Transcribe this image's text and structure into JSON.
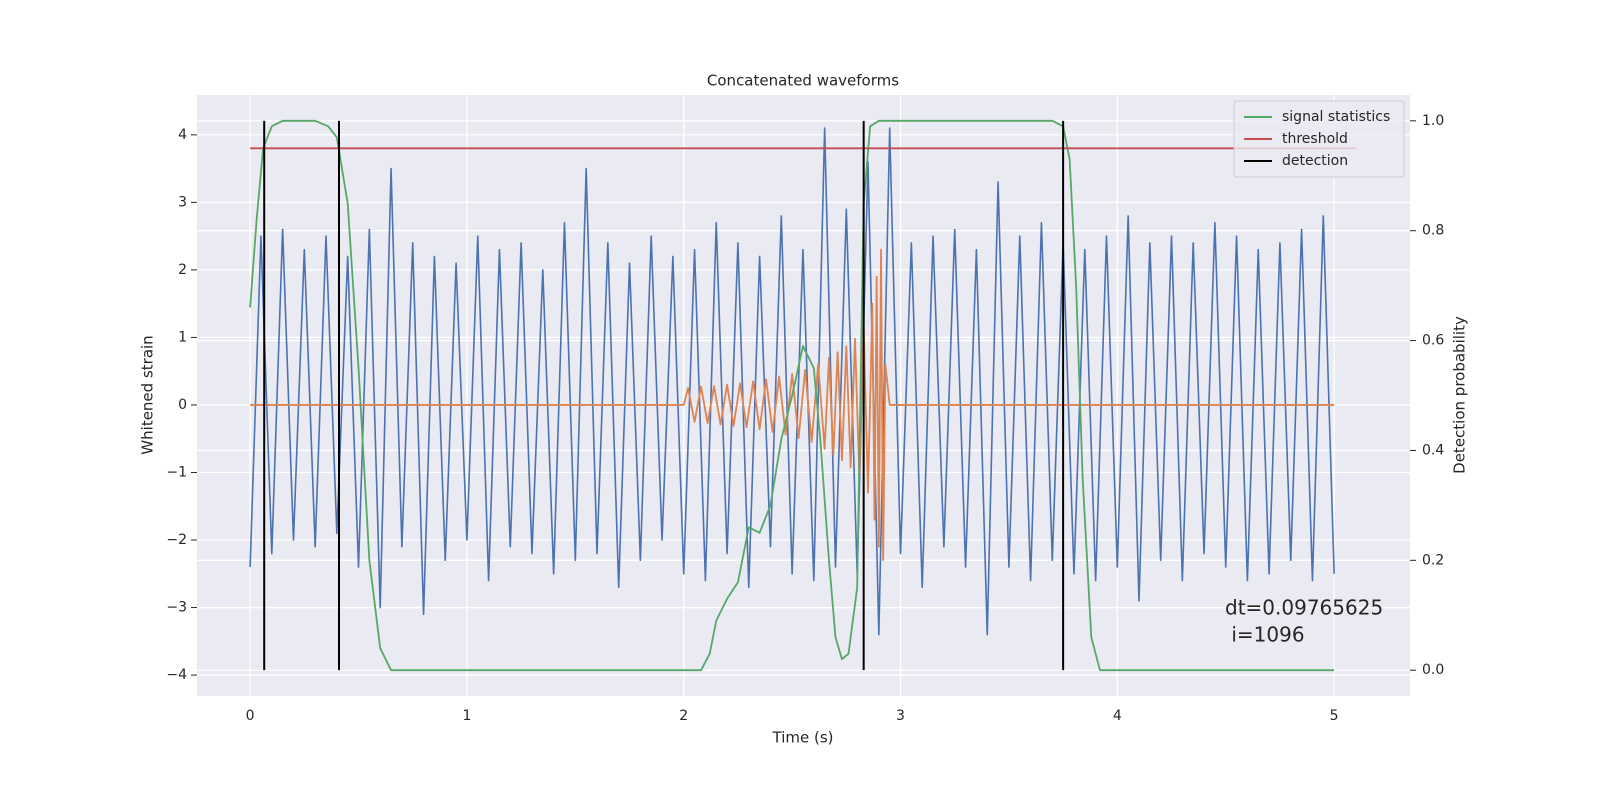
{
  "chart_data": {
    "type": "line",
    "title": "Concatenated waveforms",
    "xlabel": "Time (s)",
    "ylabel": "Whitened strain",
    "y2label": "Detection probability",
    "xlim": [
      -0.245,
      5.35
    ],
    "ylim": [
      -4.31,
      4.59
    ],
    "y2lim": [
      -0.047,
      1.047
    ],
    "xticks": [
      0,
      1,
      2,
      3,
      4,
      5
    ],
    "yticks": [
      {
        "value": -4,
        "label": "−4"
      },
      {
        "value": -3,
        "label": "−3"
      },
      {
        "value": -2,
        "label": "−2"
      },
      {
        "value": -1,
        "label": "−1"
      },
      0,
      1,
      2,
      3,
      4
    ],
    "y2ticks": [
      {
        "value": 0,
        "label": "0.0"
      },
      0.2,
      0.4,
      0.6,
      0.8,
      {
        "value": 1,
        "label": "1.0"
      }
    ],
    "grid": true,
    "legend": "upper right",
    "annotation": [
      "dt=0.09765625",
      " i=1096"
    ],
    "series": [
      {
        "color": "#4c72b0",
        "x": [
          0,
          0.05,
          0.1,
          0.15,
          0.2,
          0.25,
          0.3,
          0.35,
          0.4,
          0.45,
          0.5,
          0.55,
          0.6,
          0.65,
          0.7,
          0.75,
          0.8,
          0.85,
          0.9,
          0.95,
          1,
          1.05,
          1.1,
          1.15,
          1.2,
          1.25,
          1.3,
          1.35,
          1.4,
          1.45,
          1.5,
          1.55,
          1.6,
          1.65,
          1.7,
          1.75,
          1.8,
          1.85,
          1.9,
          1.95,
          2,
          2.05,
          2.1,
          2.15,
          2.2,
          2.25,
          2.3,
          2.35,
          2.4,
          2.45,
          2.5,
          2.55,
          2.6,
          2.65,
          2.7,
          2.75,
          2.8,
          2.85,
          2.9,
          2.95,
          3,
          3.05,
          3.1,
          3.15,
          3.2,
          3.25,
          3.3,
          3.35,
          3.4,
          3.45,
          3.5,
          3.55,
          3.6,
          3.65,
          3.7,
          3.75,
          3.8,
          3.85,
          3.9,
          3.95,
          4,
          4.05,
          4.1,
          4.15,
          4.2,
          4.25,
          4.3,
          4.35,
          4.4,
          4.45,
          4.5,
          4.55,
          4.6,
          4.65,
          4.7,
          4.75,
          4.8,
          4.85,
          4.9,
          4.95,
          5
        ],
        "values": [
          -2.4,
          2.5,
          -2.2,
          2.6,
          -2.0,
          2.3,
          -2.1,
          2.5,
          -1.9,
          2.2,
          -2.4,
          2.6,
          -3.0,
          3.5,
          -2.1,
          2.4,
          -3.1,
          2.2,
          -2.3,
          2.1,
          -2.0,
          2.5,
          -2.6,
          2.3,
          -2.1,
          2.4,
          -2.2,
          2.0,
          -2.5,
          2.7,
          -2.3,
          3.5,
          -2.2,
          2.4,
          -2.7,
          2.1,
          -2.3,
          2.5,
          -2.0,
          2.2,
          -2.5,
          2.3,
          -2.6,
          2.7,
          -2.2,
          2.4,
          -2.7,
          2.2,
          -2.1,
          2.8,
          -2.5,
          2.3,
          -2.6,
          4.1,
          -2.4,
          2.9,
          -2.5,
          3.6,
          -3.4,
          4.1,
          -2.2,
          2.4,
          -2.7,
          2.5,
          -2.1,
          2.6,
          -2.4,
          2.3,
          -3.4,
          3.3,
          -2.4,
          2.5,
          -2.6,
          2.7,
          -2.3,
          2.4,
          -2.5,
          2.3,
          -2.6,
          2.5,
          -2.4,
          2.8,
          -2.9,
          2.4,
          -2.3,
          2.5,
          -2.6,
          2.4,
          -2.2,
          2.7,
          -2.4,
          2.5,
          -2.6,
          2.3,
          -2.5,
          2.4,
          -2.3,
          2.6,
          -2.6,
          2.8,
          -2.5
        ]
      },
      {
        "color": "#dd8452",
        "x": [
          0,
          2.0,
          2.02,
          2.05,
          2.08,
          2.11,
          2.14,
          2.17,
          2.2,
          2.23,
          2.26,
          2.29,
          2.32,
          2.35,
          2.38,
          2.41,
          2.44,
          2.47,
          2.5,
          2.53,
          2.56,
          2.59,
          2.62,
          2.65,
          2.67,
          2.69,
          2.71,
          2.73,
          2.75,
          2.77,
          2.79,
          2.81,
          2.83,
          2.85,
          2.87,
          2.88,
          2.89,
          2.9,
          2.91,
          2.92,
          2.93,
          2.95,
          5
        ],
        "values": [
          0,
          0,
          0.25,
          -0.25,
          0.27,
          -0.27,
          0.28,
          -0.29,
          0.3,
          -0.31,
          0.32,
          -0.33,
          0.35,
          -0.36,
          0.38,
          -0.4,
          0.42,
          -0.44,
          0.46,
          -0.49,
          0.52,
          -0.55,
          0.6,
          -0.65,
          0.7,
          -0.74,
          0.78,
          -0.82,
          0.87,
          -0.92,
          0.98,
          -1.05,
          1.15,
          -1.3,
          1.5,
          -1.7,
          1.9,
          -2.1,
          2.3,
          -2.3,
          0.6,
          0,
          0
        ]
      },
      {
        "name": "signal statistics",
        "color": "#55a868",
        "axis": "y2",
        "x": [
          0,
          0.03,
          0.06,
          0.1,
          0.15,
          0.3,
          0.36,
          0.4,
          0.45,
          0.5,
          0.55,
          0.6,
          0.65,
          1.5,
          2.08,
          2.12,
          2.15,
          2.2,
          2.25,
          2.3,
          2.35,
          2.4,
          2.45,
          2.5,
          2.55,
          2.6,
          2.63,
          2.67,
          2.7,
          2.73,
          2.76,
          2.8,
          2.83,
          2.86,
          2.9,
          3.7,
          3.75,
          3.78,
          3.81,
          3.84,
          3.88,
          3.92,
          5
        ],
        "values": [
          0.66,
          0.82,
          0.95,
          0.99,
          1.0,
          1.0,
          0.99,
          0.97,
          0.85,
          0.55,
          0.2,
          0.04,
          0.0,
          0.0,
          0.0,
          0.03,
          0.09,
          0.13,
          0.16,
          0.26,
          0.25,
          0.3,
          0.42,
          0.5,
          0.59,
          0.55,
          0.42,
          0.2,
          0.06,
          0.02,
          0.03,
          0.15,
          0.85,
          0.99,
          1.0,
          1.0,
          0.99,
          0.93,
          0.7,
          0.35,
          0.06,
          0.0,
          0.0
        ]
      },
      {
        "name": "threshold",
        "color": "#c44e52",
        "axis": "y2",
        "x": [
          0,
          5.1
        ],
        "values": [
          0.95,
          0.95
        ]
      },
      {
        "name": "detection",
        "color": "#000000",
        "axis": "y2",
        "kind": "vlines",
        "x": [
          0.065,
          0.41,
          2.83,
          3.75
        ],
        "span": [
          0,
          1
        ]
      }
    ]
  }
}
